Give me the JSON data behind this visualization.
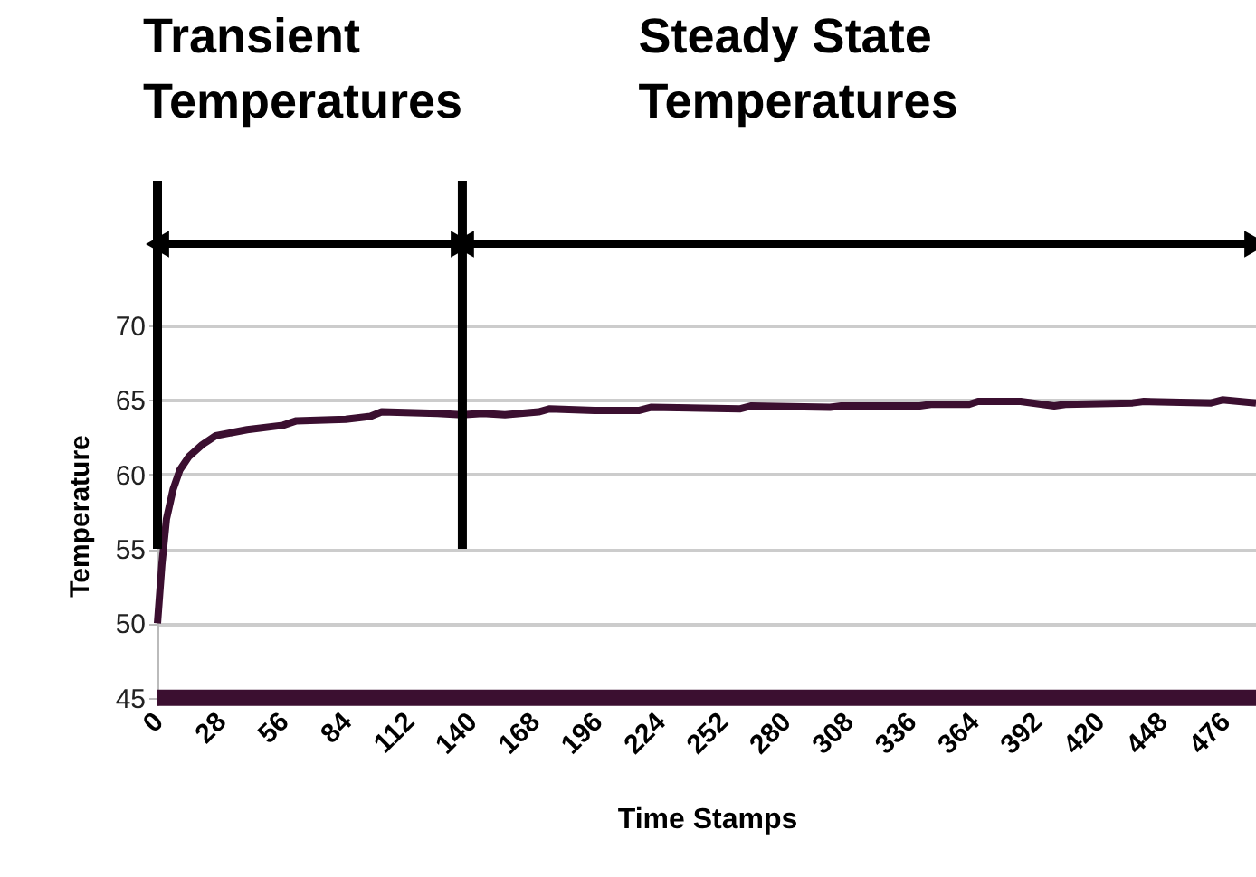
{
  "chart_data": {
    "type": "line",
    "xlabel": "Time Stamps",
    "ylabel": "Temperature",
    "x": [
      0,
      2,
      4,
      7,
      10,
      14,
      20,
      26,
      40,
      56,
      62,
      84,
      95,
      100,
      125,
      136,
      145,
      155,
      170,
      175,
      195,
      215,
      220,
      260,
      265,
      300,
      305,
      340,
      345,
      362,
      366,
      385,
      400,
      405,
      435,
      440,
      470,
      475,
      490
    ],
    "series": [
      {
        "color": "#3b0f30",
        "values": [
          50,
          54,
          57,
          59,
          60.3,
          61.2,
          62,
          62.6,
          63,
          63.3,
          63.6,
          63.7,
          63.9,
          64.2,
          64.1,
          64,
          64.1,
          64,
          64.2,
          64.4,
          64.3,
          64.3,
          64.5,
          64.4,
          64.6,
          64.5,
          64.6,
          64.6,
          64.7,
          64.7,
          64.9,
          64.9,
          64.6,
          64.7,
          64.8,
          64.9,
          64.8,
          65,
          64.8
        ]
      },
      {
        "color": "#3b0f30",
        "x": [
          0,
          490
        ],
        "values": [
          45,
          45
        ]
      }
    ],
    "xlim": [
      0,
      490
    ],
    "xticks": [
      0,
      28,
      56,
      84,
      112,
      140,
      168,
      196,
      224,
      252,
      280,
      308,
      336,
      364,
      392,
      420,
      448,
      476
    ],
    "ylim": [
      44.5,
      70
    ],
    "yticks": [
      45,
      50,
      55,
      60,
      65,
      70
    ],
    "grid": "y",
    "marker": "none",
    "line_style": "solid",
    "ref_lines": [
      {
        "axis": "x",
        "value": 0,
        "color": "#000000"
      },
      {
        "axis": "x",
        "value": 136,
        "color": "#000000"
      }
    ],
    "annotations": [
      "Transient Temperatures",
      "Steady State Temperatures"
    ]
  }
}
